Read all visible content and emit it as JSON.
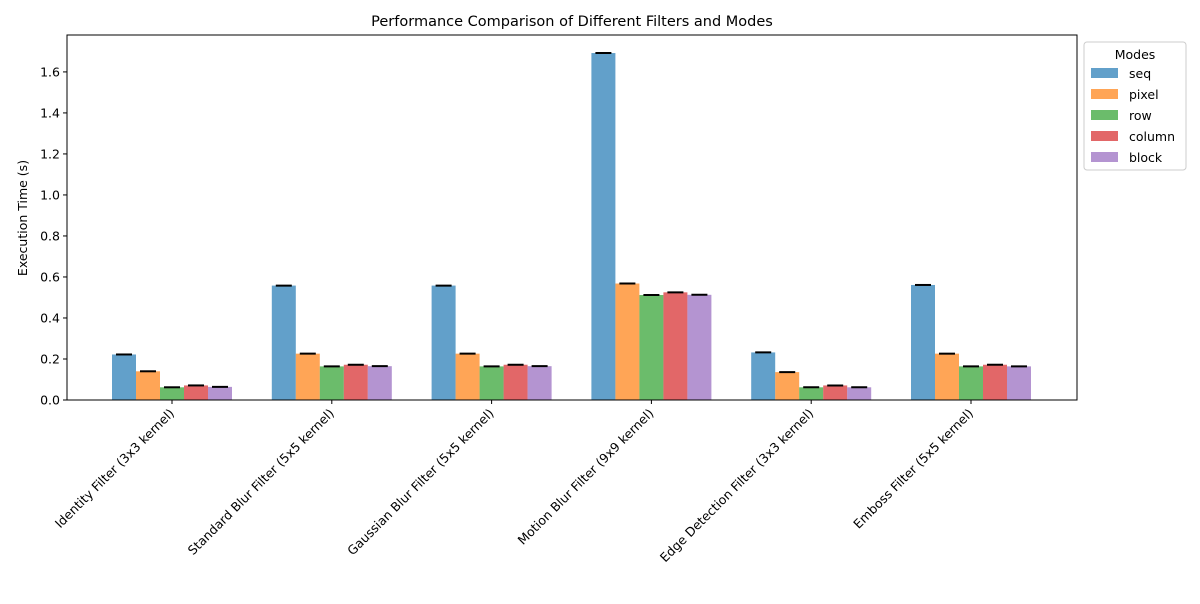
{
  "chart_data": {
    "type": "bar",
    "title": "Performance Comparison of Different Filters and Modes",
    "xlabel": "",
    "ylabel": "Execution Time (s)",
    "ylim": [
      0,
      1.78
    ],
    "yticks": [
      0.0,
      0.2,
      0.4,
      0.6,
      0.8,
      1.0,
      1.2,
      1.4,
      1.6
    ],
    "categories": [
      "Identity Filter (3x3 kernel)",
      "Standard Blur Filter (5x5 kernel)",
      "Gaussian Blur Filter (5x5 kernel)",
      "Motion Blur Filter (9x9 kernel)",
      "Edge Detection Filter (3x3 kernel)",
      "Emboss Filter (5x5 kernel)"
    ],
    "legend": {
      "title": "Modes",
      "position": "outside-right"
    },
    "grid": false,
    "error_bars": true,
    "series": [
      {
        "name": "seq",
        "color": "#1f77b4",
        "values": [
          0.222,
          0.558,
          0.558,
          1.692,
          0.232,
          0.561
        ]
      },
      {
        "name": "pixel",
        "color": "#ff7f0e",
        "values": [
          0.14,
          0.226,
          0.226,
          0.568,
          0.136,
          0.226
        ]
      },
      {
        "name": "row",
        "color": "#2ca02c",
        "values": [
          0.062,
          0.164,
          0.164,
          0.512,
          0.062,
          0.164
        ]
      },
      {
        "name": "column",
        "color": "#d62728",
        "values": [
          0.071,
          0.172,
          0.172,
          0.525,
          0.071,
          0.172
        ]
      },
      {
        "name": "block",
        "color": "#9467bd",
        "values": [
          0.064,
          0.165,
          0.165,
          0.513,
          0.062,
          0.164
        ]
      }
    ]
  }
}
